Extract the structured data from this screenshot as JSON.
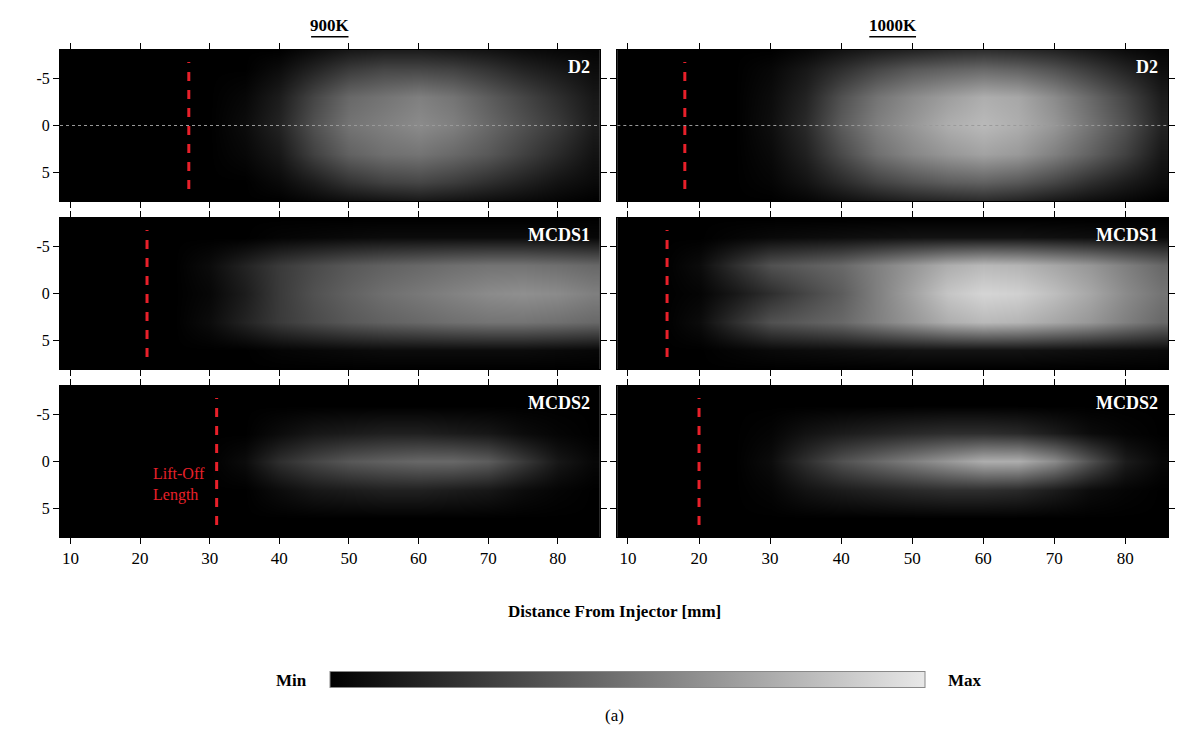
{
  "chart_data": {
    "type": "heatmap",
    "columns": [
      "900K",
      "1000K"
    ],
    "rows": [
      "D2",
      "MCDS1",
      "MCDS2"
    ],
    "xlabel": "Distance From Injector [mm]",
    "caption": "(a)",
    "xlim": [
      8.5,
      86
    ],
    "xticks": [
      10,
      20,
      30,
      40,
      50,
      60,
      70,
      80
    ],
    "ylim": [
      8,
      -8
    ],
    "yticks": [
      -5,
      0,
      5
    ],
    "x": [
      10,
      15,
      20,
      25,
      30,
      35,
      40,
      45,
      50,
      55,
      60,
      65,
      70,
      75,
      80,
      85
    ],
    "y": [
      -8,
      -6,
      -3,
      0,
      3,
      6,
      8
    ],
    "lift_off_label": {
      "text": "Lift-Off Length",
      "row": "MCDS2",
      "column": "900K",
      "color": "#e8202a"
    },
    "colorbar": {
      "range": [
        0,
        1
      ],
      "ticks": [
        {
          "value": 0,
          "label": "Min"
        },
        {
          "value": 1,
          "label": "Max"
        }
      ]
    },
    "panels": [
      {
        "row": "D2",
        "column": "900K",
        "lift_off_length": 27,
        "centerline": 0,
        "z": [
          [
            0,
            0,
            0,
            0,
            0,
            0,
            0,
            0.05,
            0.1,
            0.12,
            0.12,
            0.1,
            0.08,
            0.05,
            0.03,
            0.02
          ],
          [
            0,
            0,
            0,
            0,
            0,
            0,
            0.05,
            0.15,
            0.25,
            0.3,
            0.3,
            0.28,
            0.22,
            0.15,
            0.1,
            0.05
          ],
          [
            0,
            0,
            0,
            0,
            0,
            0.03,
            0.12,
            0.3,
            0.45,
            0.5,
            0.55,
            0.5,
            0.4,
            0.3,
            0.2,
            0.1
          ],
          [
            0,
            0,
            0,
            0,
            0,
            0.05,
            0.15,
            0.35,
            0.5,
            0.55,
            0.6,
            0.55,
            0.45,
            0.35,
            0.25,
            0.12
          ],
          [
            0,
            0,
            0,
            0,
            0,
            0.03,
            0.1,
            0.28,
            0.42,
            0.48,
            0.5,
            0.45,
            0.38,
            0.28,
            0.18,
            0.08
          ],
          [
            0,
            0,
            0,
            0,
            0,
            0,
            0.04,
            0.12,
            0.22,
            0.28,
            0.3,
            0.26,
            0.2,
            0.14,
            0.08,
            0.04
          ],
          [
            0,
            0,
            0,
            0,
            0,
            0,
            0,
            0.03,
            0.06,
            0.08,
            0.1,
            0.08,
            0.06,
            0.04,
            0.02,
            0
          ]
        ]
      },
      {
        "row": "D2",
        "column": "1000K",
        "lift_off_length": 18,
        "centerline": 0,
        "z": [
          [
            0,
            0,
            0,
            0,
            0,
            0.03,
            0.08,
            0.12,
            0.15,
            0.18,
            0.2,
            0.18,
            0.15,
            0.1,
            0.05,
            0.02
          ],
          [
            0,
            0,
            0,
            0,
            0.03,
            0.1,
            0.2,
            0.3,
            0.38,
            0.42,
            0.45,
            0.42,
            0.35,
            0.25,
            0.15,
            0.06
          ],
          [
            0,
            0,
            0,
            0,
            0.05,
            0.15,
            0.35,
            0.5,
            0.6,
            0.68,
            0.75,
            0.72,
            0.6,
            0.45,
            0.3,
            0.12
          ],
          [
            0,
            0,
            0,
            0,
            0.06,
            0.18,
            0.4,
            0.55,
            0.65,
            0.75,
            0.8,
            0.75,
            0.65,
            0.5,
            0.35,
            0.15
          ],
          [
            0,
            0,
            0,
            0,
            0.04,
            0.14,
            0.32,
            0.48,
            0.58,
            0.65,
            0.7,
            0.66,
            0.55,
            0.42,
            0.28,
            0.1
          ],
          [
            0,
            0,
            0,
            0,
            0.02,
            0.08,
            0.18,
            0.28,
            0.35,
            0.4,
            0.42,
            0.38,
            0.3,
            0.2,
            0.12,
            0.05
          ],
          [
            0,
            0,
            0,
            0,
            0,
            0.02,
            0.06,
            0.1,
            0.14,
            0.16,
            0.18,
            0.15,
            0.1,
            0.06,
            0.03,
            0
          ]
        ]
      },
      {
        "row": "MCDS1",
        "column": "900K",
        "lift_off_length": 21,
        "z": [
          [
            0,
            0,
            0,
            0,
            0,
            0,
            0,
            0,
            0,
            0,
            0,
            0,
            0,
            0,
            0,
            0
          ],
          [
            0,
            0,
            0,
            0,
            0,
            0,
            0.02,
            0.03,
            0.04,
            0.05,
            0.05,
            0.05,
            0.05,
            0.05,
            0.04,
            0.03
          ],
          [
            0,
            0,
            0,
            0,
            0.05,
            0.15,
            0.25,
            0.32,
            0.38,
            0.42,
            0.45,
            0.48,
            0.5,
            0.5,
            0.48,
            0.45
          ],
          [
            0,
            0,
            0,
            0,
            0.03,
            0.12,
            0.25,
            0.35,
            0.42,
            0.48,
            0.52,
            0.56,
            0.6,
            0.62,
            0.6,
            0.55
          ],
          [
            0,
            0,
            0,
            0,
            0.05,
            0.15,
            0.25,
            0.32,
            0.38,
            0.42,
            0.45,
            0.48,
            0.5,
            0.5,
            0.48,
            0.45
          ],
          [
            0,
            0,
            0,
            0,
            0,
            0,
            0.02,
            0.03,
            0.04,
            0.05,
            0.05,
            0.05,
            0.05,
            0.05,
            0.04,
            0.03
          ],
          [
            0,
            0,
            0,
            0,
            0,
            0,
            0,
            0,
            0,
            0,
            0,
            0,
            0,
            0,
            0,
            0
          ]
        ]
      },
      {
        "row": "MCDS1",
        "column": "1000K",
        "lift_off_length": 15.5,
        "z": [
          [
            0,
            0,
            0,
            0,
            0,
            0,
            0,
            0,
            0,
            0,
            0,
            0,
            0,
            0,
            0,
            0
          ],
          [
            0,
            0,
            0,
            0.02,
            0.04,
            0.05,
            0.06,
            0.07,
            0.08,
            0.08,
            0.08,
            0.08,
            0.07,
            0.06,
            0.05,
            0.04
          ],
          [
            0,
            0,
            0.05,
            0.2,
            0.35,
            0.4,
            0.45,
            0.55,
            0.65,
            0.75,
            0.8,
            0.78,
            0.72,
            0.65,
            0.55,
            0.45
          ],
          [
            0,
            0,
            0.02,
            0.1,
            0.2,
            0.3,
            0.4,
            0.55,
            0.7,
            0.85,
            0.92,
            0.9,
            0.82,
            0.72,
            0.6,
            0.5
          ],
          [
            0,
            0,
            0.05,
            0.2,
            0.35,
            0.4,
            0.45,
            0.55,
            0.65,
            0.75,
            0.8,
            0.78,
            0.72,
            0.65,
            0.55,
            0.45
          ],
          [
            0,
            0,
            0,
            0.02,
            0.04,
            0.05,
            0.06,
            0.07,
            0.08,
            0.08,
            0.08,
            0.08,
            0.07,
            0.06,
            0.05,
            0.04
          ],
          [
            0,
            0,
            0,
            0,
            0,
            0,
            0,
            0,
            0,
            0,
            0,
            0,
            0,
            0,
            0,
            0
          ]
        ]
      },
      {
        "row": "MCDS2",
        "column": "900K",
        "lift_off_length": 31,
        "z": [
          [
            0,
            0,
            0,
            0,
            0,
            0,
            0,
            0,
            0,
            0,
            0,
            0,
            0,
            0,
            0,
            0
          ],
          [
            0,
            0,
            0,
            0,
            0,
            0,
            0,
            0,
            0,
            0,
            0,
            0,
            0,
            0,
            0,
            0
          ],
          [
            0,
            0,
            0,
            0,
            0,
            0,
            0.05,
            0.1,
            0.12,
            0.14,
            0.14,
            0.12,
            0.1,
            0.05,
            0.02,
            0
          ],
          [
            0,
            0,
            0,
            0,
            0,
            0.05,
            0.2,
            0.3,
            0.38,
            0.42,
            0.45,
            0.45,
            0.4,
            0.25,
            0.1,
            0.03
          ],
          [
            0,
            0,
            0,
            0,
            0,
            0,
            0.05,
            0.1,
            0.12,
            0.14,
            0.14,
            0.12,
            0.1,
            0.05,
            0.02,
            0
          ],
          [
            0,
            0,
            0,
            0,
            0,
            0,
            0,
            0,
            0,
            0,
            0,
            0,
            0,
            0,
            0,
            0
          ],
          [
            0,
            0,
            0,
            0,
            0,
            0,
            0,
            0,
            0,
            0,
            0,
            0,
            0,
            0,
            0,
            0
          ]
        ]
      },
      {
        "row": "MCDS2",
        "column": "1000K",
        "lift_off_length": 20,
        "z": [
          [
            0,
            0,
            0,
            0,
            0,
            0,
            0,
            0,
            0,
            0,
            0,
            0,
            0,
            0,
            0,
            0
          ],
          [
            0,
            0,
            0,
            0,
            0,
            0,
            0,
            0,
            0,
            0,
            0,
            0,
            0,
            0,
            0,
            0
          ],
          [
            0,
            0,
            0,
            0,
            0.02,
            0.08,
            0.12,
            0.15,
            0.18,
            0.2,
            0.2,
            0.18,
            0.12,
            0.05,
            0.02,
            0
          ],
          [
            0,
            0,
            0,
            0,
            0.05,
            0.2,
            0.35,
            0.45,
            0.55,
            0.65,
            0.75,
            0.75,
            0.6,
            0.35,
            0.12,
            0.03
          ],
          [
            0,
            0,
            0,
            0,
            0.02,
            0.08,
            0.12,
            0.15,
            0.18,
            0.2,
            0.2,
            0.18,
            0.12,
            0.05,
            0.02,
            0
          ],
          [
            0,
            0,
            0,
            0,
            0,
            0,
            0,
            0,
            0,
            0,
            0,
            0,
            0,
            0,
            0,
            0
          ],
          [
            0,
            0,
            0,
            0,
            0,
            0,
            0,
            0,
            0,
            0,
            0,
            0,
            0,
            0,
            0,
            0
          ]
        ]
      }
    ]
  }
}
